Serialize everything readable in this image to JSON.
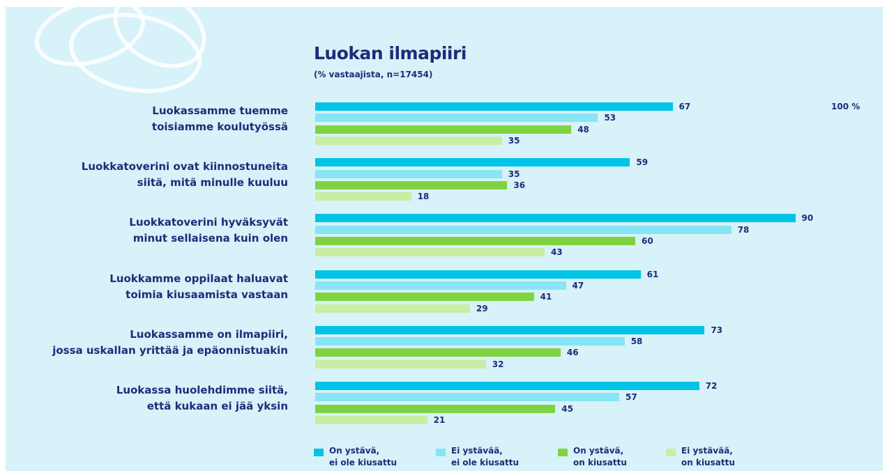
{
  "chart_data": {
    "type": "bar",
    "orientation": "horizontal",
    "title": "Luokan ilmapiiri",
    "subtitle": "(% vastaajista, n=17454)",
    "categories": [
      [
        "Luokassamme tuemme",
        "toisiamme koulutyössä"
      ],
      [
        "Luokkatoverini ovat kiinnostuneita",
        "siitä, mitä minulle kuuluu"
      ],
      [
        "Luokkatoverini hyväksyvät",
        "minut sellaisena kuin olen"
      ],
      [
        "Luokkamme oppilaat haluavat",
        "toimia kiusaamista vastaan"
      ],
      [
        "Luokassamme on ilmapiiri,",
        "jossa uskallan yrittää ja epäonnistuakin"
      ],
      [
        "Luokassa huolehdimme siitä,",
        "että kukaan ei jää yksin"
      ]
    ],
    "series": [
      {
        "name": [
          "On ystävä,",
          "ei ole kiusattu"
        ],
        "color": "#00c3e5",
        "values": [
          67,
          59,
          90,
          61,
          73,
          72
        ]
      },
      {
        "name": [
          "Ei ystävää,",
          "ei ole kiusattu"
        ],
        "color": "#88e5f5",
        "values": [
          53,
          35,
          78,
          47,
          58,
          57
        ]
      },
      {
        "name": [
          "On ystävä,",
          "on kiusattu"
        ],
        "color": "#7fd340",
        "values": [
          48,
          36,
          60,
          41,
          46,
          45
        ]
      },
      {
        "name": [
          "Ei ystävää,",
          "on kiusattu"
        ],
        "color": "#c9eda2",
        "values": [
          35,
          18,
          43,
          29,
          32,
          21
        ]
      }
    ],
    "xlim": [
      0,
      100
    ],
    "xticks": [
      {
        "value": 100,
        "label": "100 %"
      }
    ]
  }
}
